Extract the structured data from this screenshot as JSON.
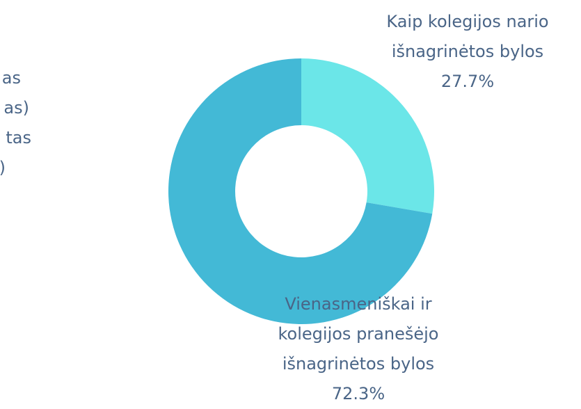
{
  "chart_data": {
    "type": "donut",
    "categories": [
      "Kaip kolegijos nario išnagrinėtos bylos",
      "Vienasmeniškai ir kolegijos pranešėjo išnagrinėtos bylos"
    ],
    "values": [
      27.7,
      72.3
    ],
    "value_labels": [
      "27.7%",
      "72.3%"
    ],
    "colors": [
      "#6be6e8",
      "#43b9d6"
    ],
    "cropped_label_lines": [
      "as",
      "as)",
      "tas",
      ")"
    ]
  }
}
